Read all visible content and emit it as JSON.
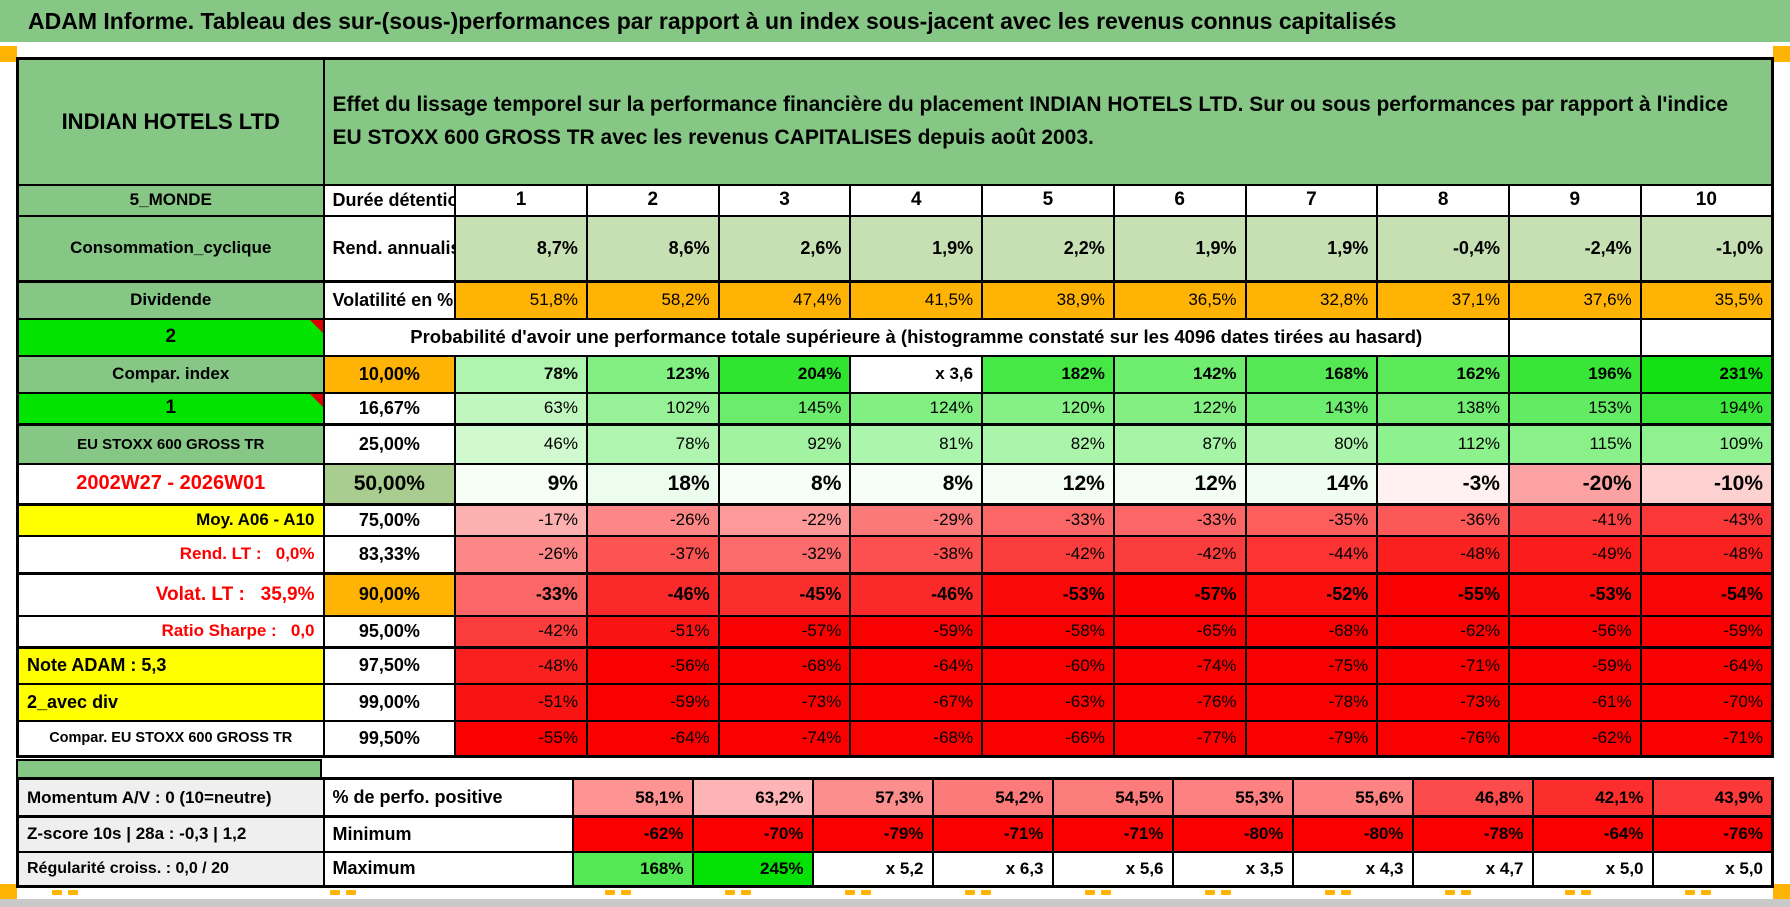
{
  "title": "ADAM Informe. Tableau des sur-(sous-)performances par rapport à un index sous-jacent avec les revenus connus capitalisés",
  "header": {
    "instrument": "INDIAN HOTELS LTD",
    "description": "Effet du lissage temporel sur la performance financière du placement INDIAN HOTELS LTD. Sur ou sous performances par rapport à l'indice EU STOXX 600 GROSS TR avec les revenus CAPITALISES depuis août 2003."
  },
  "colors": {
    "green": "#86C786",
    "bright_green": "#00E400",
    "orange": "#FFB405",
    "yellow": "#FFFF00",
    "rend_green": "#C6E0B4",
    "mid_green": "#A9CD8E",
    "gray": "#EFEFEF",
    "red_text": "#FF0000",
    "heat_red": "#FA0000",
    "heat_green": "#00DF00",
    "window_gray": "#C9C9C9",
    "wedge_red": "#DD0000"
  },
  "table": {
    "rows": [
      {
        "id": "duree",
        "label": "5_MONDE",
        "metric": "Durée détention (an)",
        "values": [
          "1",
          "2",
          "3",
          "4",
          "5",
          "6",
          "7",
          "8",
          "9",
          "10"
        ]
      },
      {
        "id": "rend",
        "label": "Consommation_cyclique",
        "metric": "Rend. annualisé en %",
        "values": [
          "8,7%",
          "8,6%",
          "2,6%",
          "1,9%",
          "2,2%",
          "1,9%",
          "1,9%",
          "-0,4%",
          "-2,4%",
          "-1,0%"
        ]
      },
      {
        "id": "volat",
        "label": "Dividende",
        "metric": "Volatilité en %",
        "values": [
          "51,8%",
          "58,2%",
          "47,4%",
          "41,5%",
          "38,9%",
          "36,5%",
          "32,8%",
          "37,1%",
          "37,6%",
          "35,5%"
        ]
      },
      {
        "id": "proba",
        "label": "2",
        "metric": "Probabilité d'avoir une performance totale supérieure à (histogramme constaté sur les 4096 dates tirées au hasard)",
        "values": [
          "",
          ""
        ]
      },
      {
        "id": "p10",
        "label": "Compar. index",
        "metric": "10,00%",
        "values": [
          "78%",
          "123%",
          "204%",
          "x 3,6",
          "182%",
          "142%",
          "168%",
          "162%",
          "196%",
          "231%"
        ]
      },
      {
        "id": "p1667",
        "label": "1",
        "metric": "16,67%",
        "values": [
          "63%",
          "102%",
          "145%",
          "124%",
          "120%",
          "122%",
          "143%",
          "138%",
          "153%",
          "194%"
        ]
      },
      {
        "id": "p25",
        "label": "EU STOXX 600 GROSS TR",
        "metric": "25,00%",
        "values": [
          "46%",
          "78%",
          "92%",
          "81%",
          "82%",
          "87%",
          "80%",
          "112%",
          "115%",
          "109%"
        ]
      },
      {
        "id": "p50",
        "label": "2002W27 - 2026W01",
        "metric": "50,00%",
        "values": [
          "9%",
          "18%",
          "8%",
          "8%",
          "12%",
          "12%",
          "14%",
          "-3%",
          "-20%",
          "-10%"
        ]
      },
      {
        "id": "p75",
        "label": "Moy. A06 - A10",
        "metric": "75,00%",
        "values": [
          "-17%",
          "-26%",
          "-22%",
          "-29%",
          "-33%",
          "-33%",
          "-35%",
          "-36%",
          "-41%",
          "-43%"
        ]
      },
      {
        "id": "p8333",
        "label": "Rend. LT :   0,0%",
        "metric": "83,33%",
        "values": [
          "-26%",
          "-37%",
          "-32%",
          "-38%",
          "-42%",
          "-42%",
          "-44%",
          "-48%",
          "-49%",
          "-48%"
        ]
      },
      {
        "id": "p90",
        "label": "Volat. LT :   35,9%",
        "metric": "90,00%",
        "values": [
          "-33%",
          "-46%",
          "-45%",
          "-46%",
          "-53%",
          "-57%",
          "-52%",
          "-55%",
          "-53%",
          "-54%"
        ]
      },
      {
        "id": "p95",
        "label": "Ratio Sharpe :   0,0",
        "metric": "95,00%",
        "values": [
          "-42%",
          "-51%",
          "-57%",
          "-59%",
          "-58%",
          "-65%",
          "-68%",
          "-62%",
          "-56%",
          "-59%"
        ]
      },
      {
        "id": "p975",
        "label": "Note ADAM : 5,3",
        "metric": "97,50%",
        "values": [
          "-48%",
          "-56%",
          "-68%",
          "-64%",
          "-60%",
          "-74%",
          "-75%",
          "-71%",
          "-59%",
          "-64%"
        ]
      },
      {
        "id": "p99",
        "label": "2_avec div",
        "metric": "99,00%",
        "values": [
          "-51%",
          "-59%",
          "-73%",
          "-67%",
          "-63%",
          "-76%",
          "-78%",
          "-73%",
          "-61%",
          "-70%"
        ]
      },
      {
        "id": "p995",
        "label": "Compar. EU STOXX 600 GROSS TR",
        "metric": "99,50%",
        "values": [
          "-55%",
          "-64%",
          "-74%",
          "-68%",
          "-66%",
          "-77%",
          "-79%",
          "-76%",
          "-62%",
          "-71%"
        ]
      },
      {
        "id": "momentum",
        "label": "Momentum A/V : 0 (10=neutre)",
        "metric": "% de perfo. positive",
        "values": [
          "58,1%",
          "63,2%",
          "57,3%",
          "54,2%",
          "54,5%",
          "55,3%",
          "55,6%",
          "46,8%",
          "42,1%",
          "43,9%"
        ]
      },
      {
        "id": "zscore",
        "label": "Z-score 10s | 28a : -0,3 | 1,2",
        "metric": "Minimum",
        "values": [
          "-62%",
          "-70%",
          "-79%",
          "-71%",
          "-71%",
          "-80%",
          "-80%",
          "-78%",
          "-64%",
          "-76%"
        ]
      },
      {
        "id": "regularite",
        "label": "Régularité croiss. : 0,0 / 20",
        "metric": "Maximum",
        "values": [
          "168%",
          "245%",
          "x 5,2",
          "x 6,3",
          "x 5,6",
          "x 3,5",
          "x 4,3",
          "x 4,7",
          "x 5,0",
          "x 5,0"
        ]
      }
    ]
  }
}
